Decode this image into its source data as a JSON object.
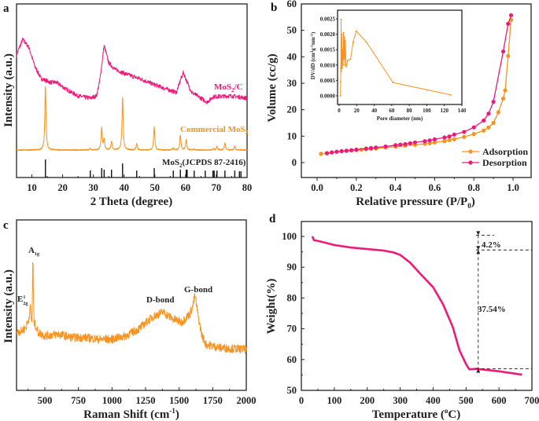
{
  "colors": {
    "pink": "#ee1a7a",
    "orange": "#f7931e",
    "black": "#111111"
  },
  "chart_data": [
    {
      "panel": "a",
      "type": "line",
      "xlabel": "2 Theta (degree)",
      "ylabel": "Intensity (a.u.)",
      "xlim": [
        5,
        80
      ],
      "xticks": [
        10,
        20,
        30,
        40,
        50,
        60,
        70,
        80
      ],
      "y_ticks_shown": false,
      "series": [
        {
          "name": "MoS2/C",
          "label_parts": [
            "MoS",
            "2",
            "/C"
          ],
          "color": "#ee1a7a",
          "points": [
            [
              5,
              70.6
            ],
            [
              7,
              79.6
            ],
            [
              9,
              75
            ],
            [
              11,
              63.8
            ],
            [
              13,
              57
            ],
            [
              16,
              54.8
            ],
            [
              18,
              54.8
            ],
            [
              21,
              51
            ],
            [
              25,
              47
            ],
            [
              29,
              45.7
            ],
            [
              31,
              47
            ],
            [
              32,
              54.8
            ],
            [
              33.5,
              76
            ],
            [
              35,
              66
            ],
            [
              37,
              62.4
            ],
            [
              40,
              60
            ],
            [
              45,
              57
            ],
            [
              50,
              53.4
            ],
            [
              55,
              50.2
            ],
            [
              57,
              49
            ],
            [
              58.5,
              57
            ],
            [
              59.3,
              60.6
            ],
            [
              60.5,
              54.8
            ],
            [
              62,
              49
            ],
            [
              65,
              45.7
            ],
            [
              67,
              43.4
            ],
            [
              69,
              46.6
            ],
            [
              75,
              47
            ],
            [
              80,
              45.7
            ]
          ]
        },
        {
          "name": "Commercial MoS2",
          "label_parts": [
            "Commercial MoS",
            "2",
            ""
          ],
          "color": "#f7931e",
          "baseline": 15.8,
          "peaks": [
            [
              14.4,
              52.5
            ],
            [
              29,
              16.8
            ],
            [
              32.7,
              28.5
            ],
            [
              33.5,
              22
            ],
            [
              35.9,
              20.8
            ],
            [
              39.5,
              46
            ],
            [
              44.1,
              19.5
            ],
            [
              49.8,
              29
            ],
            [
              56,
              16.9
            ],
            [
              58.3,
              24.4
            ],
            [
              60.2,
              22
            ],
            [
              62.8,
              16.4
            ],
            [
              69,
              16.6
            ],
            [
              70.2,
              18
            ],
            [
              72.8,
              20
            ],
            [
              76,
              18
            ]
          ]
        },
        {
          "name": "MoS2(JCPDS 87-2416)",
          "label_parts": [
            "MoS",
            "2",
            "(JCPDS 87-2416)"
          ],
          "color": "#111111",
          "sticks": [
            [
              14.4,
              10.4
            ],
            [
              29,
              4
            ],
            [
              32.7,
              5.4
            ],
            [
              33.5,
              4.5
            ],
            [
              35.9,
              4.5
            ],
            [
              39.5,
              8.1
            ],
            [
              44.1,
              4
            ],
            [
              49.8,
              5.4
            ],
            [
              56,
              4
            ],
            [
              58.3,
              4.5
            ],
            [
              60.2,
              4.5
            ],
            [
              60.5,
              4.5
            ],
            [
              62.8,
              4
            ],
            [
              66.4,
              4
            ],
            [
              68.9,
              4
            ],
            [
              69.3,
              4
            ],
            [
              70.2,
              4
            ],
            [
              72.8,
              4
            ],
            [
              76,
              4
            ],
            [
              77.5,
              3.6
            ],
            [
              78,
              3.6
            ]
          ]
        }
      ]
    },
    {
      "panel": "b",
      "type": "line",
      "xlabel_parts": [
        "Relative pressure (P/P",
        "0",
        ")"
      ],
      "ylabel": "Volume (cc/g)",
      "xlim": [
        -0.08,
        1.09
      ],
      "ylim": [
        -6.6,
        60
      ],
      "xticks": [
        "0.0",
        "0.2",
        "0.4",
        "0.6",
        "0.8",
        "1.0"
      ],
      "yticks": [
        0,
        10,
        20,
        30,
        40,
        50,
        60
      ],
      "legend": "bottom-right",
      "series": [
        {
          "name": "Adsorption",
          "color": "#f7931e",
          "points": [
            [
              0.02,
              3.3
            ],
            [
              0.05,
              3.6
            ],
            [
              0.075,
              3.9
            ],
            [
              0.1,
              4.1
            ],
            [
              0.125,
              4.3
            ],
            [
              0.15,
              4.4
            ],
            [
              0.175,
              4.6
            ],
            [
              0.2,
              4.7
            ],
            [
              0.225,
              4.9
            ],
            [
              0.25,
              5
            ],
            [
              0.275,
              5.2
            ],
            [
              0.3,
              5.3
            ],
            [
              0.35,
              5.7
            ],
            [
              0.4,
              6
            ],
            [
              0.45,
              6.4
            ],
            [
              0.5,
              6.7
            ],
            [
              0.55,
              7.1
            ],
            [
              0.575,
              7.3
            ],
            [
              0.6,
              7.6
            ],
            [
              0.65,
              8.1
            ],
            [
              0.675,
              8.5
            ],
            [
              0.7,
              8.8
            ],
            [
              0.75,
              9.7
            ],
            [
              0.8,
              10.8
            ],
            [
              0.85,
              12.1
            ],
            [
              0.875,
              13.3
            ],
            [
              0.9,
              15
            ],
            [
              0.925,
              19
            ],
            [
              0.95,
              24.2
            ],
            [
              0.96,
              27.3
            ],
            [
              0.975,
              40.3
            ],
            [
              0.99,
              54
            ]
          ]
        },
        {
          "name": "Desorption",
          "color": "#ee1a7a",
          "points": [
            [
              0.05,
              3.5
            ],
            [
              0.075,
              3.8
            ],
            [
              0.1,
              4.1
            ],
            [
              0.125,
              4.3
            ],
            [
              0.15,
              4.5
            ],
            [
              0.175,
              4.7
            ],
            [
              0.2,
              4.9
            ],
            [
              0.25,
              5.3
            ],
            [
              0.275,
              5.5
            ],
            [
              0.3,
              5.7
            ],
            [
              0.35,
              6.1
            ],
            [
              0.4,
              6.6
            ],
            [
              0.425,
              6.8
            ],
            [
              0.45,
              7
            ],
            [
              0.475,
              7.3
            ],
            [
              0.5,
              7.6
            ],
            [
              0.55,
              8.1
            ],
            [
              0.575,
              8.4
            ],
            [
              0.6,
              8.8
            ],
            [
              0.65,
              9.5
            ],
            [
              0.675,
              9.9
            ],
            [
              0.7,
              10.6
            ],
            [
              0.75,
              11.6
            ],
            [
              0.8,
              13.3
            ],
            [
              0.85,
              15.9
            ],
            [
              0.875,
              18.5
            ],
            [
              0.9,
              23
            ],
            [
              0.95,
              42
            ],
            [
              0.975,
              52.5
            ],
            [
              0.99,
              55.7
            ]
          ]
        }
      ],
      "inset": {
        "type": "line",
        "xlabel": "Pore diameter (nm)",
        "ylabel_parts": [
          "DV/dD (cm",
          "3",
          "g",
          "-1",
          "nm",
          "-1",
          ")"
        ],
        "xlim": [
          -2,
          140
        ],
        "ylim": [
          -0.0003,
          0.0028
        ],
        "xticks": [
          0,
          20,
          40,
          60,
          80,
          100,
          120,
          140
        ],
        "yticks": [
          "0.0000",
          "0.0005",
          "0.0010",
          "0.0015",
          "0.0020",
          "0.0025"
        ],
        "color": "#f7931e",
        "points": [
          [
            1.5,
            0
          ],
          [
            1.7,
            0.00045
          ],
          [
            2,
            0.0009
          ],
          [
            2.2,
            0.00248
          ],
          [
            2.5,
            0.0008
          ],
          [
            3,
            0.002
          ],
          [
            3.5,
            0.0009
          ],
          [
            4,
            0.0015
          ],
          [
            4.5,
            0.001
          ],
          [
            5,
            0.00205
          ],
          [
            5.5,
            0.0012
          ],
          [
            6,
            0.0019
          ],
          [
            6.5,
            0.001
          ],
          [
            7,
            0.0018
          ],
          [
            8,
            0.00095
          ],
          [
            10,
            0.00115
          ],
          [
            13,
            0.0012
          ],
          [
            16,
            0.00175
          ],
          [
            19.5,
            0.0021
          ],
          [
            31,
            0.00175
          ],
          [
            61.5,
            0.00043
          ],
          [
            127,
            3e-05
          ]
        ]
      }
    },
    {
      "panel": "c",
      "type": "line",
      "xlabel_parts": [
        "Raman Shift (cm",
        "-1",
        ")"
      ],
      "ylabel": "Intensity (a.u.)",
      "xlim": [
        290,
        2000
      ],
      "xticks": [
        500,
        750,
        1000,
        1250,
        1500,
        1750,
        2000
      ],
      "y_ticks_shown": false,
      "color": "#f7931e",
      "annotations": {
        "a1g": [
          "A",
          "1g"
        ],
        "e2g": [
          "E",
          "1",
          "2g"
        ],
        "dbond": "D-bond",
        "gbond": "G-bond"
      },
      "points": [
        [
          290,
          34
        ],
        [
          330,
          35
        ],
        [
          360,
          37
        ],
        [
          380,
          42
        ],
        [
          392,
          49
        ],
        [
          398,
          42
        ],
        [
          404,
          40
        ],
        [
          408,
          62
        ],
        [
          411,
          81
        ],
        [
          415,
          55
        ],
        [
          420,
          40
        ],
        [
          450,
          34
        ],
        [
          500,
          32
        ],
        [
          600,
          33
        ],
        [
          700,
          31
        ],
        [
          800,
          31
        ],
        [
          900,
          30
        ],
        [
          1000,
          30
        ],
        [
          1100,
          32
        ],
        [
          1200,
          36
        ],
        [
          1300,
          43
        ],
        [
          1380,
          46
        ],
        [
          1450,
          42
        ],
        [
          1520,
          40
        ],
        [
          1580,
          45
        ],
        [
          1600,
          49
        ],
        [
          1618,
          56
        ],
        [
          1640,
          44
        ],
        [
          1670,
          32
        ],
        [
          1700,
          27
        ],
        [
          1800,
          25
        ],
        [
          2000,
          24
        ]
      ]
    },
    {
      "panel": "d",
      "type": "line",
      "xlabel_parts": [
        "Temperature (",
        "o",
        "C)"
      ],
      "ylabel": "Weight(%)",
      "xlim": [
        0,
        700
      ],
      "ylim": [
        50,
        104.9
      ],
      "xticks": [
        0,
        100,
        200,
        300,
        400,
        500,
        600,
        700
      ],
      "yticks": [
        50,
        60,
        70,
        80,
        90,
        100
      ],
      "color": "#ee1a7a",
      "annotations": {
        "first_loss": "4.2%",
        "second_loss": "37.54%"
      },
      "points": [
        [
          33,
          100
        ],
        [
          36,
          99.4
        ],
        [
          38,
          98.8
        ],
        [
          60,
          98.3
        ],
        [
          100,
          97.2
        ],
        [
          150,
          96.4
        ],
        [
          200,
          95.9
        ],
        [
          250,
          95.4
        ],
        [
          280,
          94.8
        ],
        [
          300,
          94
        ],
        [
          330,
          91.5
        ],
        [
          360,
          88
        ],
        [
          400,
          83.5
        ],
        [
          430,
          78
        ],
        [
          460,
          70.5
        ],
        [
          480,
          63
        ],
        [
          500,
          58.5
        ],
        [
          510,
          56.8
        ],
        [
          530,
          57
        ],
        [
          600,
          56.2
        ],
        [
          670,
          55.1
        ]
      ]
    }
  ]
}
